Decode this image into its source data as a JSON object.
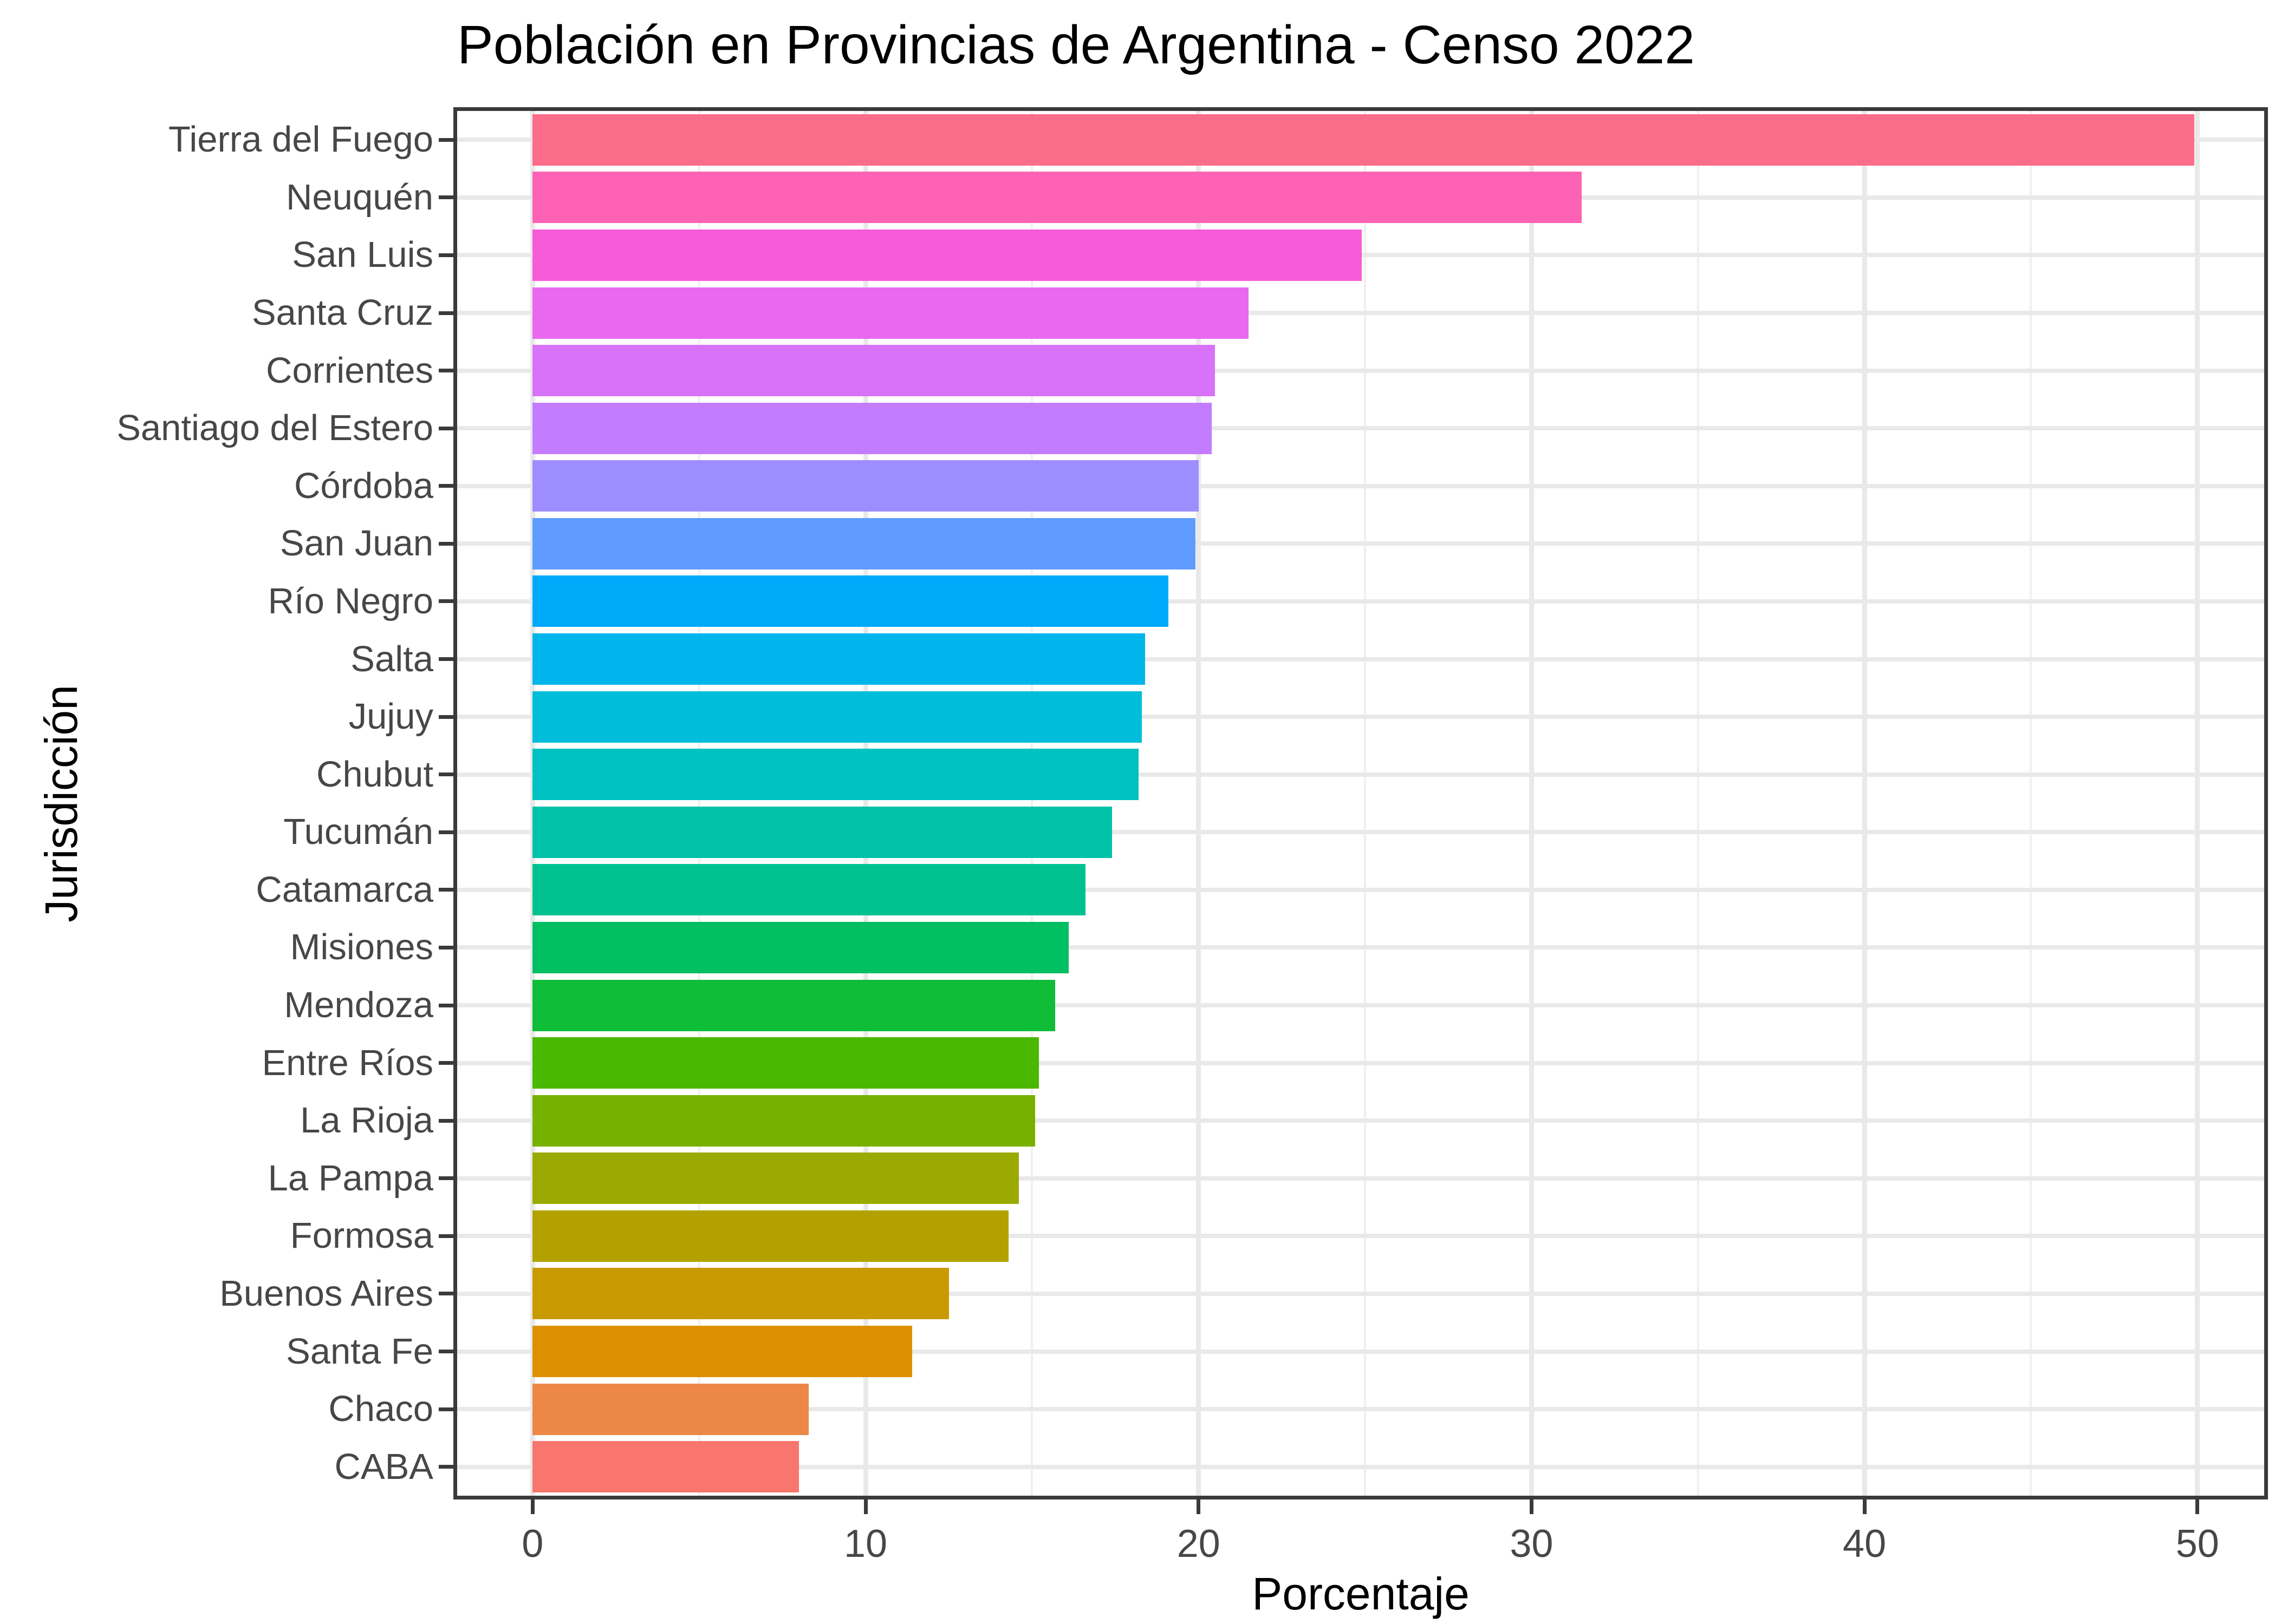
{
  "chart_data": {
    "type": "bar",
    "orientation": "horizontal",
    "title": "Población en Provincias de Argentina - Censo 2022",
    "xlabel": "Porcentaje",
    "ylabel": "Jurisdicción",
    "xlim": [
      -2.3,
      52.0
    ],
    "x_major_ticks": [
      0,
      10,
      20,
      30,
      40,
      50
    ],
    "x_tick_labels": [
      "0",
      "10",
      "20",
      "30",
      "40",
      "50"
    ],
    "x_minor_gridlines": [
      5,
      15,
      25,
      35,
      45
    ],
    "grid": "on",
    "legend": "none",
    "categories": [
      "Tierra del Fuego",
      "Neuquén",
      "San Luis",
      "Santa Cruz",
      "Corrientes",
      "Santiago del Estero",
      "Córdoba",
      "San Juan",
      "Río Negro",
      "Salta",
      "Jujuy",
      "Chubut",
      "Tucumán",
      "Catamarca",
      "Misiones",
      "Mendoza",
      "Entre Ríos",
      "La Rioja",
      "La Pampa",
      "Formosa",
      "Buenos Aires",
      "Santa Fe",
      "Chaco",
      "CABA"
    ],
    "values": [
      49.9,
      31.5,
      24.9,
      21.5,
      20.5,
      20.4,
      20.0,
      19.9,
      19.1,
      18.4,
      18.3,
      18.2,
      17.4,
      16.6,
      16.1,
      15.7,
      15.2,
      15.1,
      14.6,
      14.3,
      12.5,
      11.4,
      8.3,
      8.0
    ],
    "bar_colors": [
      "#FC6C8B",
      "#FD62B4",
      "#F85BD9",
      "#E969EE",
      "#D873F9",
      "#C47CFF",
      "#9E8DFF",
      "#609CFF",
      "#00AAFB",
      "#00B5EC",
      "#00BEDA",
      "#00C1C1",
      "#00C3A9",
      "#00C290",
      "#00BE62",
      "#0FBD39",
      "#4AB800",
      "#76B100",
      "#9AAA00",
      "#B3A100",
      "#C99A00",
      "#DC9000",
      "#EC8747",
      "#F8766D"
    ],
    "colors": {
      "background": "#FFFFFF",
      "panel_border": "#3A3A3A",
      "grid_major": "#E9E9E9",
      "grid_minor": "#F0F0F0",
      "axis_text": "#474747",
      "axis_title": "#000000",
      "title": "#000000",
      "tick_mark": "#3A3A3A"
    }
  }
}
